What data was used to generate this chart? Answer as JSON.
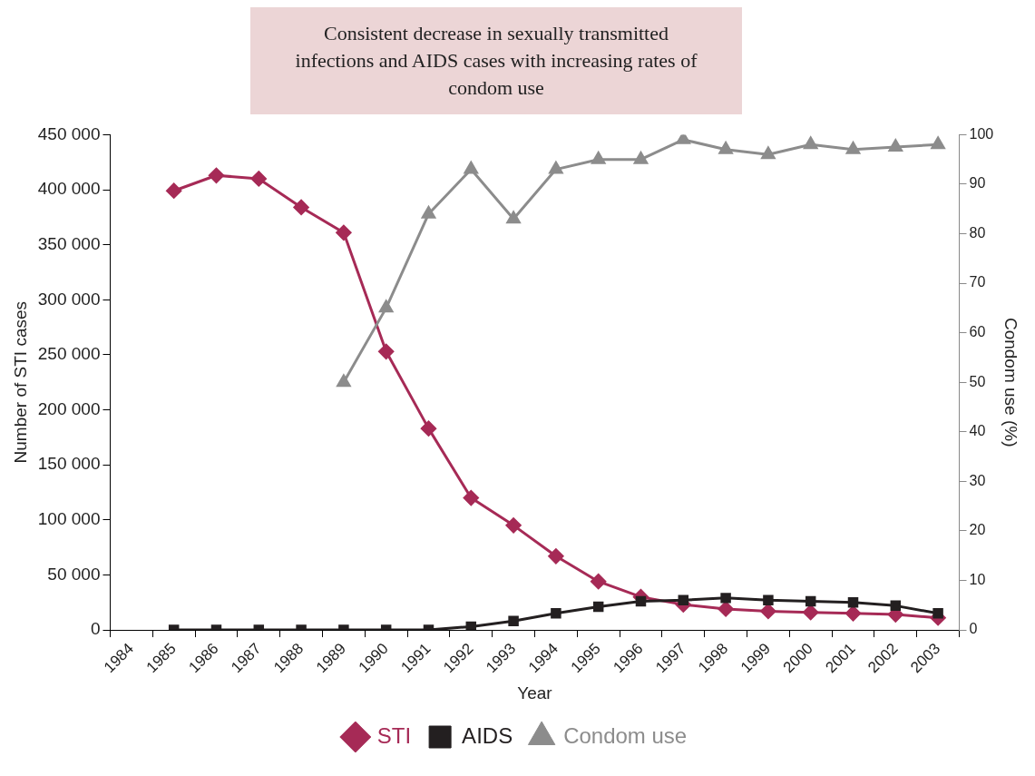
{
  "chart_data": {
    "type": "line",
    "title": "Consistent decrease in sexually transmitted infections and AIDS cases with increasing rates of condom use",
    "xlabel": "Year",
    "ylabel": "Number of STI cases",
    "y2label": "Condom use (%)",
    "categories": [
      "1984",
      "1985",
      "1986",
      "1987",
      "1988",
      "1989",
      "1990",
      "1991",
      "1992",
      "1993",
      "1994",
      "1995",
      "1996",
      "1997",
      "1998",
      "1999",
      "2000",
      "2001",
      "2002",
      "2003"
    ],
    "ylim": [
      0,
      450000
    ],
    "yticks": [
      {
        "value": 0,
        "label": "0"
      },
      {
        "value": 50000,
        "label": "50 000"
      },
      {
        "value": 100000,
        "label": "100 000"
      },
      {
        "value": 150000,
        "label": "150 000"
      },
      {
        "value": 200000,
        "label": "200 000"
      },
      {
        "value": 250000,
        "label": "250 000"
      },
      {
        "value": 300000,
        "label": "300 000"
      },
      {
        "value": 350000,
        "label": "350 000"
      },
      {
        "value": 400000,
        "label": "400 000"
      },
      {
        "value": 450000,
        "label": "450 000"
      }
    ],
    "y2lim": [
      0,
      100
    ],
    "y2ticks": [
      0,
      10,
      20,
      30,
      40,
      50,
      60,
      70,
      80,
      90,
      100
    ],
    "grid": false,
    "legend": "bottom",
    "line_style": "solid",
    "series": [
      {
        "name": "STI",
        "color": "#a62a56",
        "marker": "diamond",
        "values": [
          null,
          399000,
          413000,
          410000,
          384000,
          361000,
          253000,
          183000,
          120000,
          95000,
          67000,
          44000,
          30000,
          23000,
          19000,
          17000,
          16000,
          15000,
          14000,
          11000
        ]
      },
      {
        "name": "AIDS",
        "color": "#231f20",
        "marker": "square",
        "values": [
          null,
          0,
          0,
          0,
          0,
          0,
          0,
          0,
          3000,
          8000,
          15000,
          21000,
          26000,
          27000,
          29000,
          27000,
          26000,
          25000,
          22000,
          15000
        ]
      },
      {
        "name": "Condom use",
        "color": "#8c8c8c",
        "marker": "triangle",
        "axis": "y2",
        "values": [
          null,
          null,
          null,
          null,
          null,
          50,
          65,
          84,
          93,
          83,
          93,
          95,
          95,
          99,
          97,
          96,
          98,
          97,
          97.5,
          98
        ]
      }
    ]
  }
}
